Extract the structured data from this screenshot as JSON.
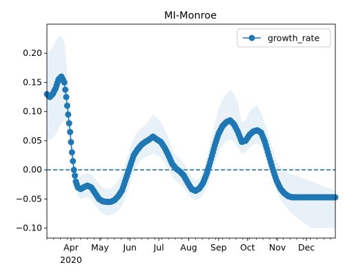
{
  "chart_data": {
    "type": "line",
    "title": "MI-Monroe",
    "xlabel": "",
    "ylabel": "",
    "x_range": [
      "2020-03-07",
      "2020-12-31"
    ],
    "ylim": [
      -0.117,
      0.25
    ],
    "y_ticks": [
      -0.1,
      -0.05,
      0.0,
      0.05,
      0.1,
      0.15,
      0.2
    ],
    "y_tick_labels": [
      "−0.10",
      "−0.05",
      "0.00",
      "0.05",
      "0.10",
      "0.15",
      "0.20"
    ],
    "x_ticks": [
      "2020-04-01",
      "2020-05-01",
      "2020-06-01",
      "2020-07-01",
      "2020-08-01",
      "2020-09-01",
      "2020-10-01",
      "2020-11-01",
      "2020-12-01"
    ],
    "x_tick_labels": [
      "Apr",
      "May",
      "Jun",
      "Jul",
      "Aug",
      "Sep",
      "Oct",
      "Nov",
      "Dec"
    ],
    "x_year_label": "2020",
    "legend": {
      "position": "top-right",
      "entries": [
        "growth_rate"
      ]
    },
    "grid": false,
    "reference_line": {
      "y": 0.0,
      "style": "dashed",
      "color": "#1f77b4"
    },
    "series": [
      {
        "name": "growth_rate",
        "color": "#1f77b4",
        "marker": "circle",
        "x": [
          "2020-03-07",
          "2020-03-10",
          "2020-03-13",
          "2020-03-16",
          "2020-03-19",
          "2020-03-22",
          "2020-03-25",
          "2020-03-27",
          "2020-03-29",
          "2020-03-31",
          "2020-04-02",
          "2020-04-04",
          "2020-04-06",
          "2020-04-08",
          "2020-04-11",
          "2020-04-14",
          "2020-04-18",
          "2020-04-22",
          "2020-04-26",
          "2020-04-30",
          "2020-05-04",
          "2020-05-08",
          "2020-05-12",
          "2020-05-16",
          "2020-05-20",
          "2020-05-24",
          "2020-05-28",
          "2020-06-01",
          "2020-06-05",
          "2020-06-09",
          "2020-06-13",
          "2020-06-17",
          "2020-06-21",
          "2020-06-25",
          "2020-06-29",
          "2020-07-03",
          "2020-07-07",
          "2020-07-11",
          "2020-07-15",
          "2020-07-19",
          "2020-07-23",
          "2020-07-27",
          "2020-07-31",
          "2020-08-04",
          "2020-08-08",
          "2020-08-12",
          "2020-08-16",
          "2020-08-20",
          "2020-08-24",
          "2020-08-28",
          "2020-09-01",
          "2020-09-05",
          "2020-09-09",
          "2020-09-13",
          "2020-09-17",
          "2020-09-21",
          "2020-09-25",
          "2020-09-29",
          "2020-10-03",
          "2020-10-07",
          "2020-10-11",
          "2020-10-15",
          "2020-10-19",
          "2020-10-23",
          "2020-10-27",
          "2020-10-31",
          "2020-11-04",
          "2020-11-08",
          "2020-11-12",
          "2020-11-16",
          "2020-11-20",
          "2020-11-24",
          "2020-11-28",
          "2020-12-02",
          "2020-12-06",
          "2020-12-10",
          "2020-12-14",
          "2020-12-18",
          "2020-12-22",
          "2020-12-26",
          "2020-12-31"
        ],
        "y": [
          0.13,
          0.125,
          0.13,
          0.14,
          0.155,
          0.16,
          0.15,
          0.125,
          0.095,
          0.065,
          0.03,
          0.0,
          -0.02,
          -0.03,
          -0.033,
          -0.03,
          -0.027,
          -0.03,
          -0.04,
          -0.05,
          -0.054,
          -0.055,
          -0.055,
          -0.052,
          -0.045,
          -0.035,
          -0.015,
          0.005,
          0.025,
          0.035,
          0.043,
          0.048,
          0.052,
          0.057,
          0.052,
          0.048,
          0.038,
          0.025,
          0.01,
          0.002,
          -0.003,
          -0.01,
          -0.022,
          -0.033,
          -0.036,
          -0.032,
          -0.022,
          -0.005,
          0.018,
          0.042,
          0.062,
          0.075,
          0.082,
          0.085,
          0.078,
          0.065,
          0.048,
          0.05,
          0.06,
          0.066,
          0.068,
          0.064,
          0.048,
          0.025,
          0.002,
          -0.018,
          -0.032,
          -0.04,
          -0.045,
          -0.047,
          -0.047,
          -0.047,
          -0.047,
          -0.047,
          -0.047,
          -0.047,
          -0.047,
          -0.047,
          -0.047,
          -0.047,
          -0.047
        ],
        "band_lower": [
          0.055,
          0.05,
          0.055,
          0.06,
          0.07,
          0.08,
          0.085,
          0.075,
          0.06,
          0.04,
          0.015,
          -0.01,
          -0.03,
          -0.045,
          -0.05,
          -0.048,
          -0.047,
          -0.05,
          -0.06,
          -0.07,
          -0.075,
          -0.078,
          -0.078,
          -0.075,
          -0.07,
          -0.062,
          -0.045,
          -0.025,
          -0.005,
          0.01,
          0.018,
          0.022,
          0.025,
          0.028,
          0.025,
          0.022,
          0.012,
          0.0,
          -0.012,
          -0.02,
          -0.025,
          -0.032,
          -0.04,
          -0.048,
          -0.052,
          -0.05,
          -0.043,
          -0.03,
          -0.01,
          0.01,
          0.03,
          0.042,
          0.05,
          0.052,
          0.048,
          0.038,
          0.028,
          0.03,
          0.038,
          0.043,
          0.045,
          0.04,
          0.025,
          0.005,
          -0.015,
          -0.035,
          -0.05,
          -0.06,
          -0.068,
          -0.075,
          -0.08,
          -0.085,
          -0.09,
          -0.095,
          -0.1,
          -0.1,
          -0.1,
          -0.1,
          -0.1,
          -0.1,
          -0.1
        ],
        "band_upper": [
          0.2,
          0.205,
          0.21,
          0.22,
          0.23,
          0.23,
          0.22,
          0.19,
          0.15,
          0.105,
          0.06,
          0.025,
          0.005,
          -0.005,
          -0.01,
          -0.008,
          -0.005,
          -0.008,
          -0.015,
          -0.025,
          -0.03,
          -0.032,
          -0.032,
          -0.028,
          -0.018,
          -0.005,
          0.015,
          0.035,
          0.055,
          0.065,
          0.072,
          0.078,
          0.085,
          0.095,
          0.09,
          0.082,
          0.07,
          0.055,
          0.035,
          0.025,
          0.018,
          0.012,
          0.0,
          -0.012,
          -0.018,
          -0.015,
          -0.003,
          0.02,
          0.05,
          0.08,
          0.105,
          0.12,
          0.13,
          0.138,
          0.13,
          0.115,
          0.08,
          0.085,
          0.1,
          0.108,
          0.11,
          0.098,
          0.08,
          0.06,
          0.035,
          0.015,
          0.005,
          0.0,
          -0.005,
          -0.008,
          -0.01,
          -0.012,
          -0.015,
          -0.018,
          -0.02,
          -0.022,
          -0.025,
          -0.028,
          -0.03,
          -0.032,
          -0.035
        ]
      }
    ]
  }
}
